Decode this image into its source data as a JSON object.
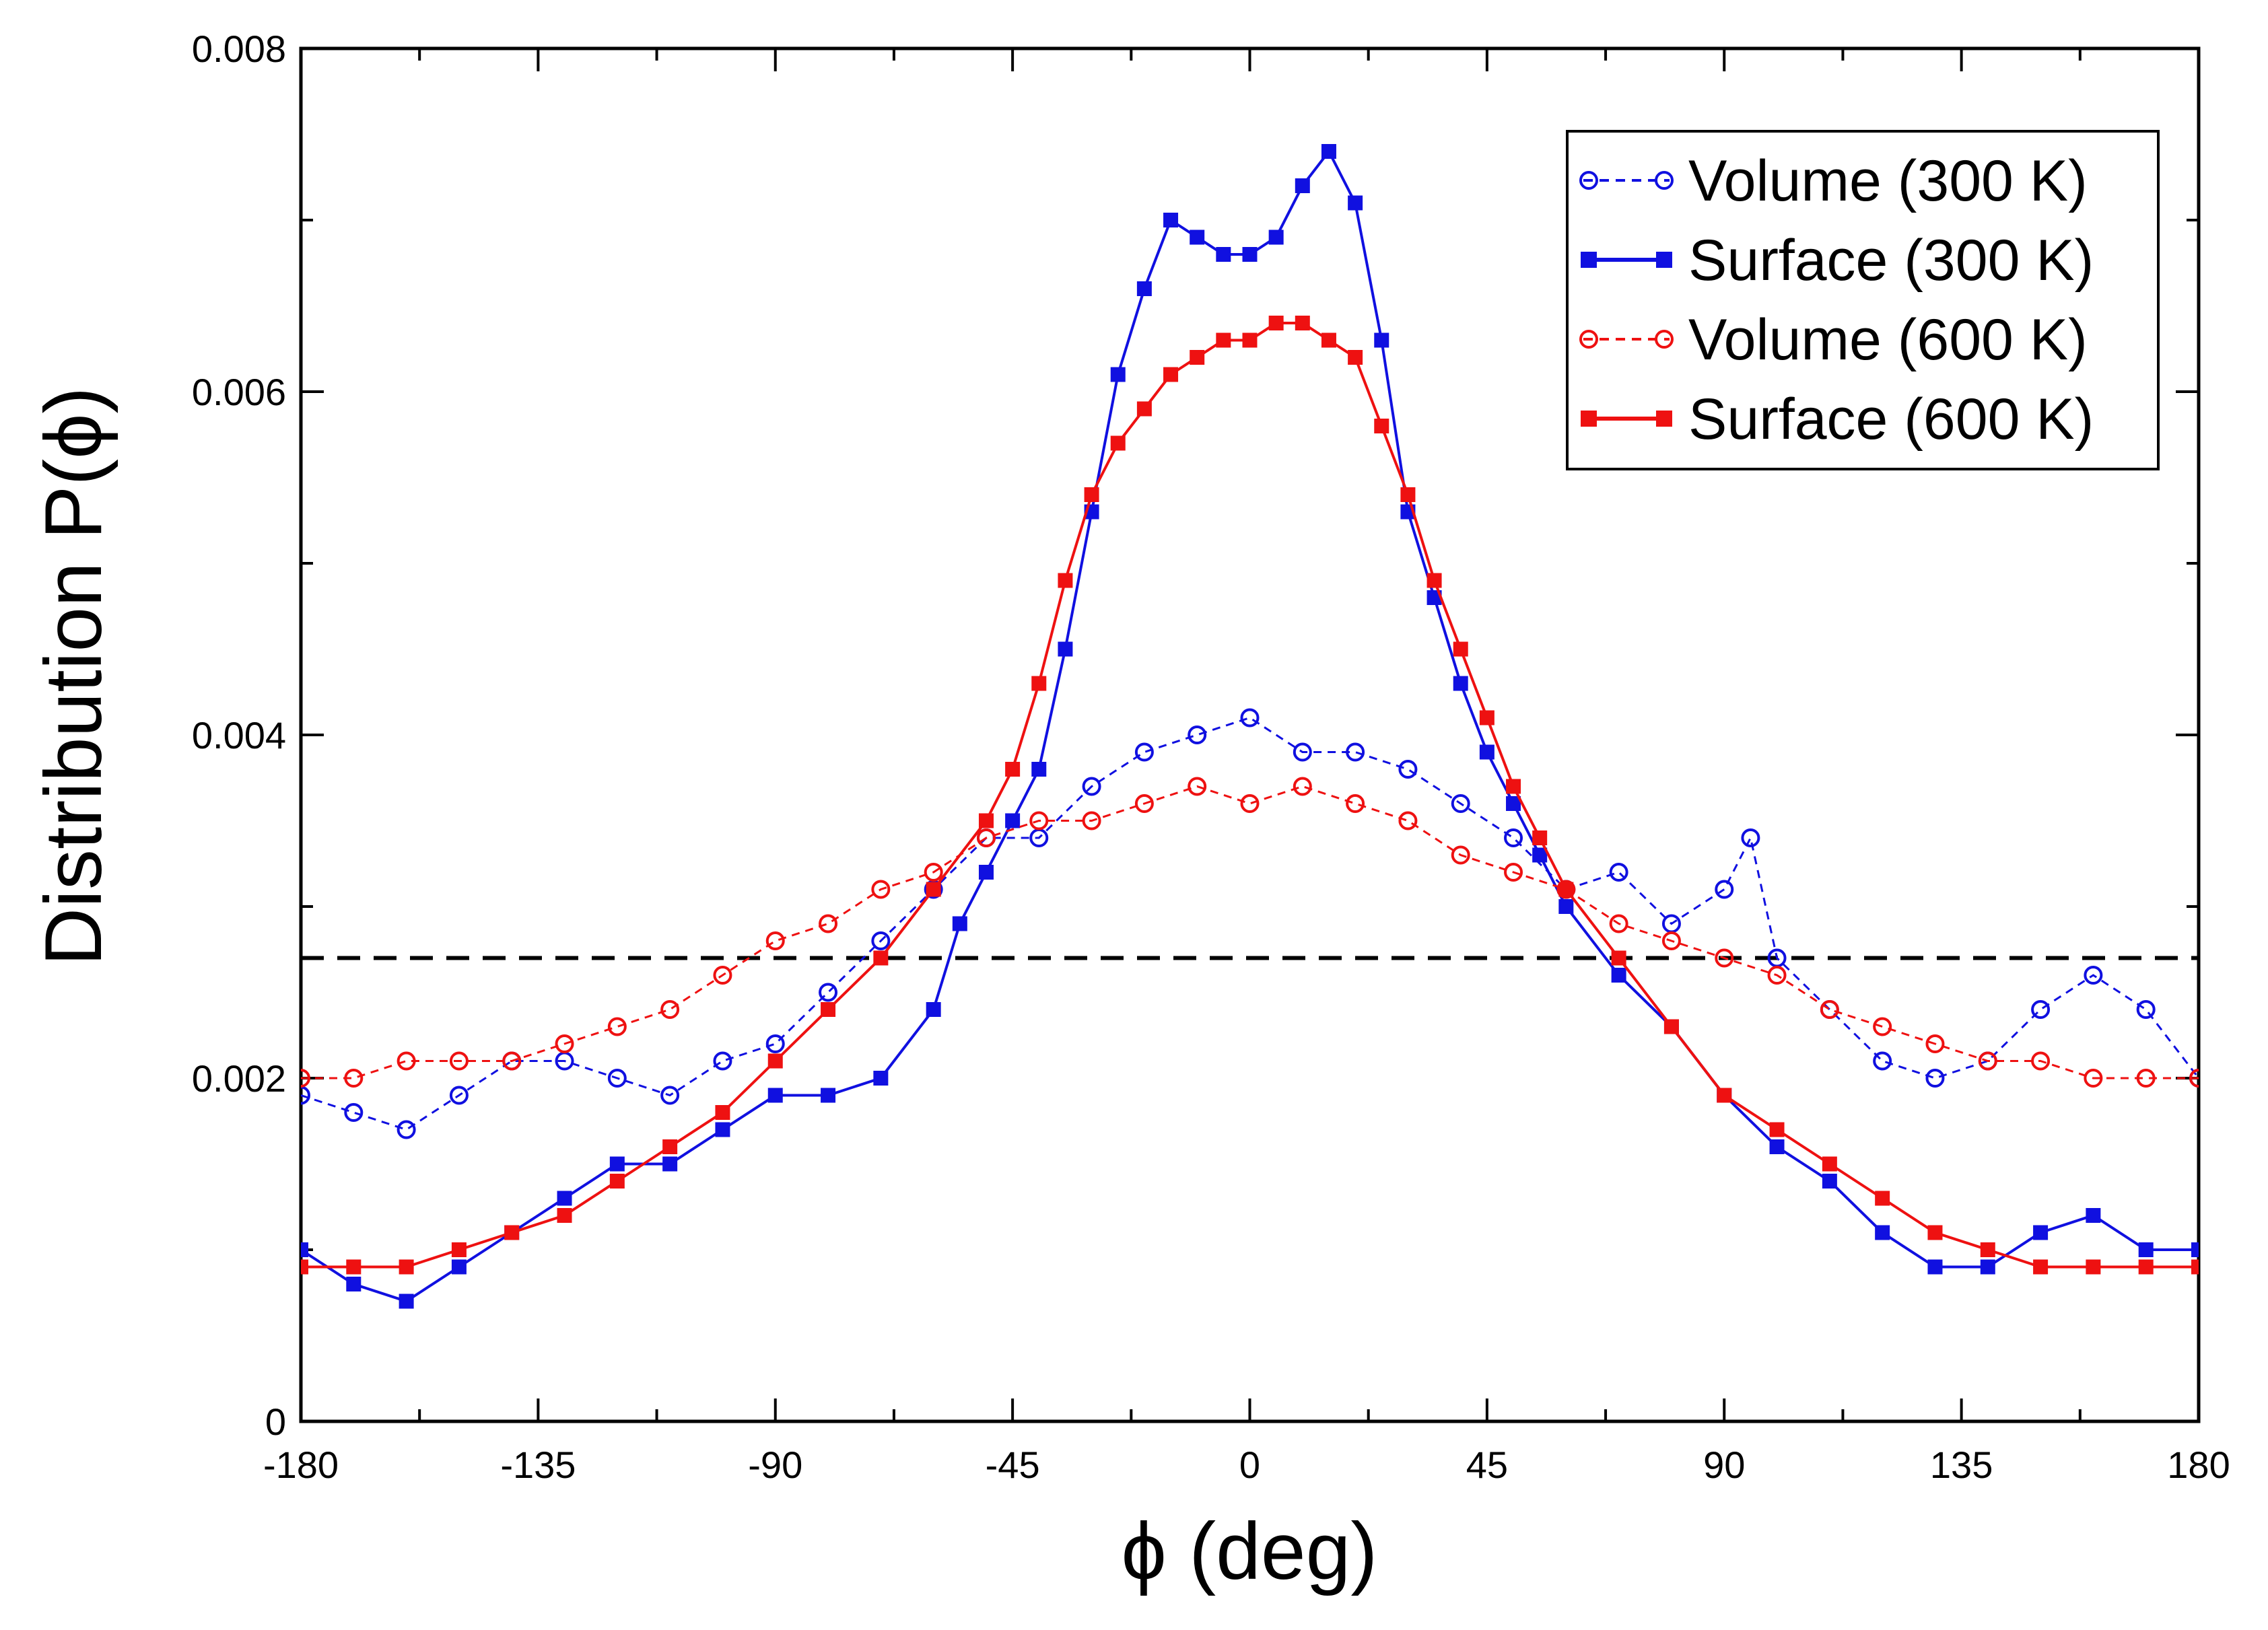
{
  "chart_data": {
    "type": "line",
    "title": "",
    "xlabel": "ϕ (deg)",
    "ylabel": "Distribution P(ϕ)",
    "xlim": [
      -180,
      180
    ],
    "ylim": [
      0,
      0.008
    ],
    "xticks": [
      -180,
      -135,
      -90,
      -45,
      0,
      45,
      90,
      135,
      180
    ],
    "xtick_labels": [
      "-180",
      "-135",
      "-90",
      "-45",
      "0",
      "45",
      "90",
      "135",
      "180"
    ],
    "yticks": [
      0,
      0.002,
      0.004,
      0.006,
      0.008
    ],
    "ytick_labels": [
      "0",
      "0.002",
      "0.004",
      "0.006",
      "0.008"
    ],
    "grid": false,
    "legend_position": "top-right",
    "reference_line": {
      "y": 0.0027,
      "style": "dashed",
      "color": "#000000"
    },
    "series": [
      {
        "name": "Volume (300 K)",
        "color": "#1010e0",
        "marker": "open-circle",
        "line": "dashed",
        "x": [
          -180,
          -170,
          -160,
          -150,
          -140,
          -130,
          -120,
          -110,
          -100,
          -90,
          -80,
          -70,
          -60,
          -50,
          -40,
          -30,
          -20,
          -10,
          0,
          10,
          20,
          30,
          40,
          50,
          60,
          70,
          80,
          90,
          95,
          100,
          110,
          120,
          130,
          140,
          150,
          160,
          170,
          180
        ],
        "values": [
          0.0019,
          0.0018,
          0.0017,
          0.0019,
          0.0021,
          0.0021,
          0.002,
          0.0019,
          0.0021,
          0.0022,
          0.0025,
          0.0028,
          0.0031,
          0.0034,
          0.0034,
          0.0037,
          0.0039,
          0.004,
          0.0041,
          0.0039,
          0.0039,
          0.0038,
          0.0036,
          0.0034,
          0.0031,
          0.0032,
          0.0029,
          0.0031,
          0.0034,
          0.0027,
          0.0024,
          0.0021,
          0.002,
          0.0021,
          0.0024,
          0.0026,
          0.0024,
          0.002
        ]
      },
      {
        "name": "Surface (300 K)",
        "color": "#1010e0",
        "marker": "filled-square",
        "line": "solid",
        "x": [
          -180,
          -170,
          -160,
          -150,
          -140,
          -130,
          -120,
          -110,
          -100,
          -90,
          -80,
          -70,
          -60,
          -55,
          -50,
          -45,
          -40,
          -35,
          -30,
          -25,
          -20,
          -15,
          -10,
          -5,
          0,
          5,
          10,
          15,
          20,
          25,
          30,
          35,
          40,
          45,
          50,
          55,
          60,
          70,
          80,
          90,
          100,
          110,
          120,
          130,
          140,
          150,
          160,
          170,
          180
        ],
        "values": [
          0.001,
          0.0008,
          0.0007,
          0.0009,
          0.0011,
          0.0013,
          0.0015,
          0.0015,
          0.0017,
          0.0019,
          0.0019,
          0.002,
          0.0024,
          0.0029,
          0.0032,
          0.0035,
          0.0038,
          0.0045,
          0.0053,
          0.0061,
          0.0066,
          0.007,
          0.0069,
          0.0068,
          0.0068,
          0.0069,
          0.0072,
          0.0074,
          0.0071,
          0.0063,
          0.0053,
          0.0048,
          0.0043,
          0.0039,
          0.0036,
          0.0033,
          0.003,
          0.0026,
          0.0023,
          0.0019,
          0.0016,
          0.0014,
          0.0011,
          0.0009,
          0.0009,
          0.0011,
          0.0012,
          0.001,
          0.001
        ]
      },
      {
        "name": "Volume (600 K)",
        "color": "#ee1111",
        "marker": "open-circle",
        "line": "dashed",
        "x": [
          -180,
          -170,
          -160,
          -150,
          -140,
          -130,
          -120,
          -110,
          -100,
          -90,
          -80,
          -70,
          -60,
          -50,
          -40,
          -30,
          -20,
          -10,
          0,
          10,
          20,
          30,
          40,
          50,
          60,
          70,
          80,
          90,
          100,
          110,
          120,
          130,
          140,
          150,
          160,
          170,
          180
        ],
        "values": [
          0.002,
          0.002,
          0.0021,
          0.0021,
          0.0021,
          0.0022,
          0.0023,
          0.0024,
          0.0026,
          0.0028,
          0.0029,
          0.0031,
          0.0032,
          0.0034,
          0.0035,
          0.0035,
          0.0036,
          0.0037,
          0.0036,
          0.0037,
          0.0036,
          0.0035,
          0.0033,
          0.0032,
          0.0031,
          0.0029,
          0.0028,
          0.0027,
          0.0026,
          0.0024,
          0.0023,
          0.0022,
          0.0021,
          0.0021,
          0.002,
          0.002,
          0.002
        ]
      },
      {
        "name": "Surface (600 K)",
        "color": "#ee1111",
        "marker": "filled-square",
        "line": "solid",
        "x": [
          -180,
          -170,
          -160,
          -150,
          -140,
          -130,
          -120,
          -110,
          -100,
          -90,
          -80,
          -70,
          -60,
          -50,
          -45,
          -40,
          -35,
          -30,
          -25,
          -20,
          -15,
          -10,
          -5,
          0,
          5,
          10,
          15,
          20,
          25,
          30,
          35,
          40,
          45,
          50,
          55,
          60,
          70,
          80,
          90,
          100,
          110,
          120,
          130,
          140,
          150,
          160,
          170,
          180
        ],
        "values": [
          0.0009,
          0.0009,
          0.0009,
          0.001,
          0.0011,
          0.0012,
          0.0014,
          0.0016,
          0.0018,
          0.0021,
          0.0024,
          0.0027,
          0.0031,
          0.0035,
          0.0038,
          0.0043,
          0.0049,
          0.0054,
          0.0057,
          0.0059,
          0.0061,
          0.0062,
          0.0063,
          0.0063,
          0.0064,
          0.0064,
          0.0063,
          0.0062,
          0.0058,
          0.0054,
          0.0049,
          0.0045,
          0.0041,
          0.0037,
          0.0034,
          0.0031,
          0.0027,
          0.0023,
          0.0019,
          0.0017,
          0.0015,
          0.0013,
          0.0011,
          0.001,
          0.0009,
          0.0009,
          0.0009,
          0.0009
        ]
      }
    ]
  }
}
